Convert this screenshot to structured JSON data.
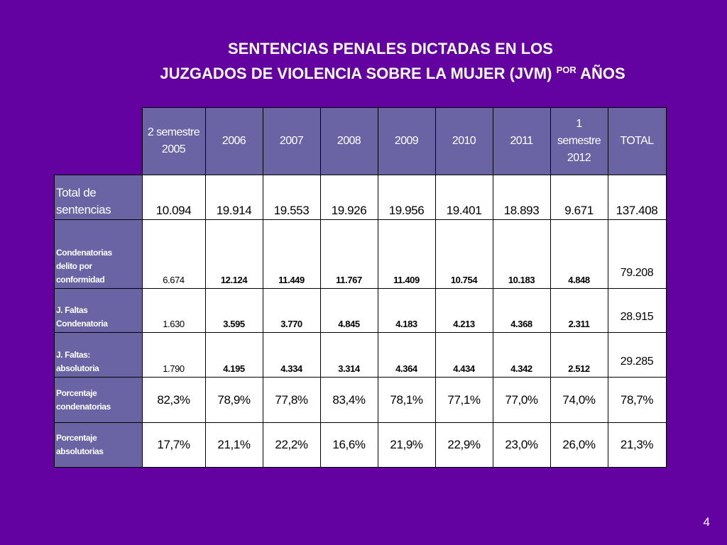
{
  "title": {
    "line1": "SENTENCIAS PENALES DICTADAS EN LOS",
    "line2_main": "JUZGADOS DE VIOLENCIA SOBRE LA MUJER (JVM)",
    "line2_sup": "POR",
    "line2_end": "AÑOS"
  },
  "table": {
    "headers": [
      [
        "2 semestre",
        "2005"
      ],
      [
        "2006"
      ],
      [
        "2007"
      ],
      [
        "2008"
      ],
      [
        "2009"
      ],
      [
        "2010"
      ],
      [
        "2011"
      ],
      [
        "1",
        "semestre",
        "2012"
      ],
      [
        "TOTAL"
      ]
    ],
    "rows": [
      {
        "label": [
          "Total de",
          "sentencias"
        ],
        "values": [
          "10.094",
          "19.914",
          "19.553",
          "19.926",
          "19.956",
          "19.401",
          "18.893",
          "9.671",
          "137.408"
        ]
      },
      {
        "label": [
          "Condenatorias",
          "delito por",
          "conformidad"
        ],
        "values": [
          "6.674",
          "12.124",
          "11.449",
          "11.767",
          "11.409",
          "10.754",
          "10.183",
          "4.848",
          "79.208"
        ]
      },
      {
        "label": [
          "J. Faltas",
          "Condenatoria"
        ],
        "values": [
          "1.630",
          "3.595",
          "3.770",
          "4.845",
          "4.183",
          "4.213",
          "4.368",
          "2.311",
          "28.915"
        ]
      },
      {
        "label": [
          "J. Faltas:",
          "absolutoria"
        ],
        "values": [
          "1.790",
          "4.195",
          "4.334",
          "3.314",
          "4.364",
          "4.434",
          "4.342",
          "2.512",
          "29.285"
        ]
      },
      {
        "label": [
          "Porcentaje",
          "condenatorias"
        ],
        "values": [
          "82,3%",
          "78,9%",
          "77,8%",
          "83,4%",
          "78,1%",
          "77,1%",
          "77,0%",
          "74,0%",
          "78,7%"
        ]
      },
      {
        "label": [
          "Porcentaje",
          "absolutorias"
        ],
        "values": [
          "17,7%",
          "21,1%",
          "22,2%",
          "16,6%",
          "21,9%",
          "22,9%",
          "23,0%",
          "26,0%",
          "21,3%"
        ]
      }
    ]
  },
  "page_number": "4",
  "colors": {
    "background": "#6302a0",
    "header_fill": "#6a64a4",
    "cell_fill": "#ffffff"
  }
}
